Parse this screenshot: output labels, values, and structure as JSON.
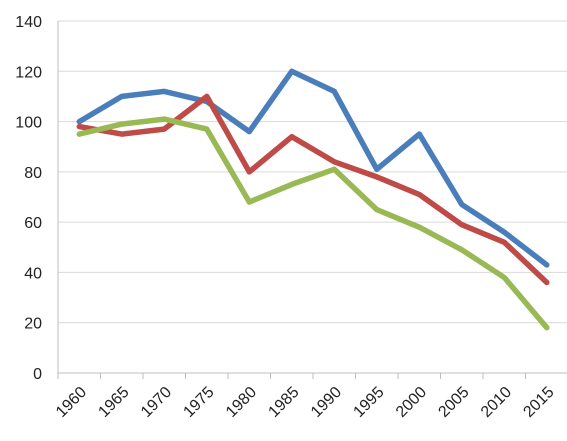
{
  "chart_data": {
    "type": "line",
    "title": "",
    "xlabel": "",
    "ylabel": "",
    "categories": [
      "1960",
      "1965",
      "1970",
      "1975",
      "1980",
      "1985",
      "1990",
      "1995",
      "2000",
      "2005",
      "2010",
      "2015"
    ],
    "ylim": [
      0,
      140
    ],
    "yticks": [
      "0",
      "20",
      "40",
      "60",
      "80",
      "100",
      "120",
      "140"
    ],
    "grid": true,
    "legend": "none",
    "series": [
      {
        "color": "#4a7ebb",
        "values": [
          100,
          110,
          112,
          108,
          96,
          120,
          112,
          81,
          95,
          67,
          56,
          43
        ]
      },
      {
        "color": "#be4b48",
        "values": [
          98,
          95,
          97,
          110,
          80,
          94,
          84,
          78,
          71,
          59,
          52,
          36
        ]
      },
      {
        "color": "#98b954",
        "values": [
          95,
          99,
          101,
          97,
          68,
          75,
          81,
          65,
          58,
          49,
          38,
          18
        ]
      }
    ]
  }
}
